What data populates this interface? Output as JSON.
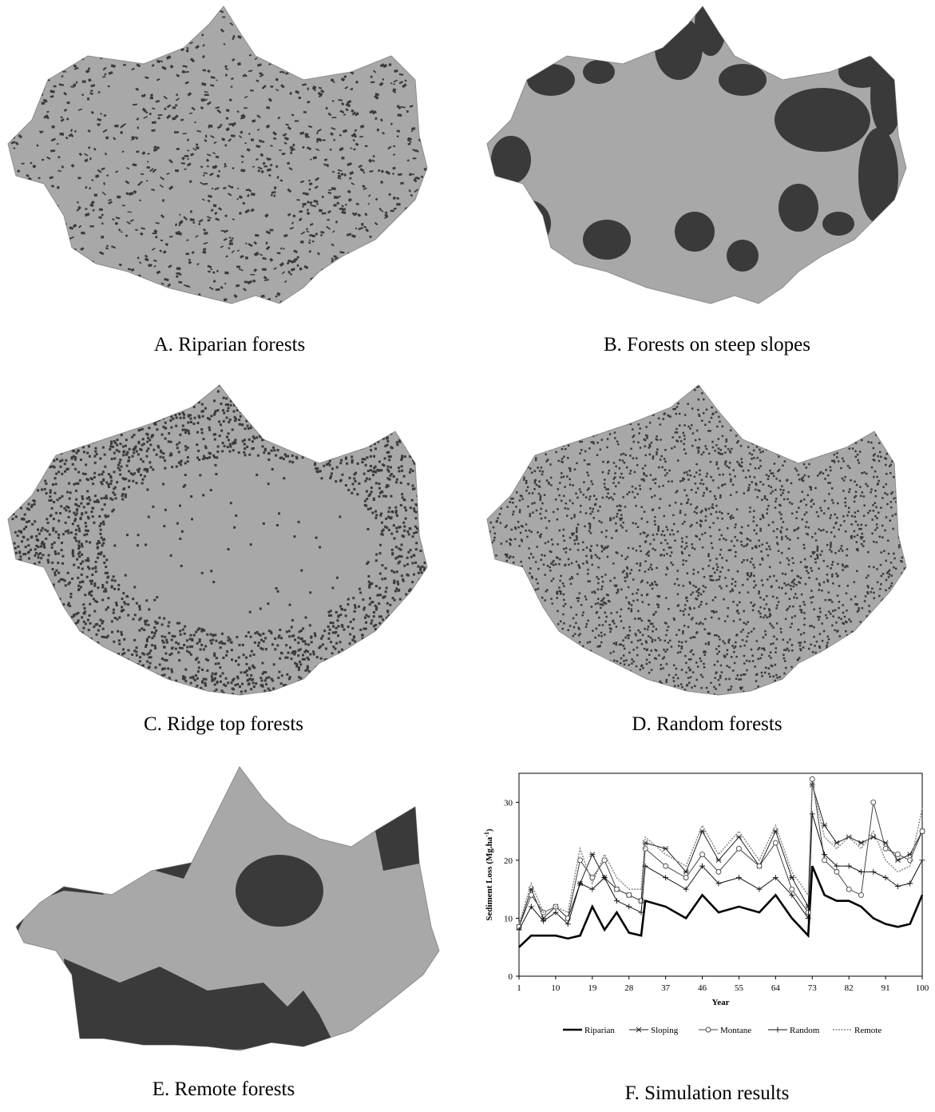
{
  "panels": [
    {
      "id": "A",
      "caption": "A. Riparian forests",
      "pattern": "riparian"
    },
    {
      "id": "B",
      "caption": "B. Forests on steep slopes",
      "pattern": "steep"
    },
    {
      "id": "C",
      "caption": "C. Ridge top forests",
      "pattern": "ridge"
    },
    {
      "id": "D",
      "caption": "D. Random forests",
      "pattern": "random"
    },
    {
      "id": "E",
      "caption": "E. Remote forests",
      "pattern": "remote"
    }
  ],
  "chart_caption": "F. Simulation results",
  "colors": {
    "terrain": "#a8a8a8",
    "forest": "#3a3a3a",
    "terrain_dark": "#8c8c8c"
  },
  "chart_data": {
    "type": "line",
    "xlabel": "Year",
    "ylabel": "Sediment Loss (Mg.ha",
    "ylabel_sup": "-1",
    "ylabel_close": ")",
    "xlim": [
      1,
      100
    ],
    "ylim": [
      0,
      35
    ],
    "x_ticks": [
      1,
      10,
      19,
      28,
      37,
      46,
      55,
      64,
      73,
      82,
      91,
      100
    ],
    "y_ticks": [
      0,
      10,
      20,
      30
    ],
    "x": [
      1,
      4,
      7,
      10,
      13,
      16,
      19,
      22,
      25,
      28,
      31,
      32,
      37,
      42,
      46,
      50,
      55,
      60,
      64,
      68,
      72,
      73,
      76,
      79,
      82,
      85,
      88,
      91,
      94,
      97,
      100
    ],
    "series": [
      {
        "name": "Riparian",
        "style": "thick",
        "values": [
          5,
          7,
          7,
          7,
          6.5,
          7,
          12,
          8,
          11,
          7.5,
          7,
          13,
          12,
          10,
          14,
          11,
          12,
          11,
          14,
          10,
          7,
          19,
          14,
          13,
          13,
          12,
          10,
          9,
          8.5,
          9,
          14
        ]
      },
      {
        "name": "Sloping",
        "style": "star",
        "values": [
          8.5,
          15,
          10,
          12,
          10,
          16,
          21,
          17,
          15,
          14,
          13,
          23,
          22,
          18,
          25,
          20,
          24,
          19,
          25,
          17,
          12,
          33,
          26,
          23,
          24,
          23,
          24,
          23,
          20,
          21,
          25
        ]
      },
      {
        "name": "Montane",
        "style": "circle",
        "values": [
          8.5,
          14,
          11,
          12,
          10,
          20,
          17,
          20,
          15,
          14,
          13,
          22,
          19,
          17,
          21,
          18,
          22,
          19,
          23,
          15,
          11,
          34,
          20,
          18,
          15,
          14,
          30,
          22,
          21,
          20,
          25
        ]
      },
      {
        "name": "Random",
        "style": "plus",
        "values": [
          8,
          12,
          9.5,
          11,
          9,
          16,
          15,
          17,
          13,
          12,
          11,
          19,
          17,
          15,
          19,
          16,
          17,
          15,
          17,
          14,
          10,
          28,
          21,
          19,
          19,
          18,
          18,
          17,
          15.5,
          16,
          20
        ]
      },
      {
        "name": "Remote",
        "style": "dotted",
        "values": [
          9,
          16,
          11,
          12,
          11,
          22,
          16,
          21,
          17,
          15,
          15,
          24,
          21,
          19,
          26,
          21,
          25,
          20,
          26,
          18,
          14,
          33,
          24,
          22,
          24,
          22,
          25,
          20,
          18,
          19,
          29
        ]
      }
    ]
  }
}
